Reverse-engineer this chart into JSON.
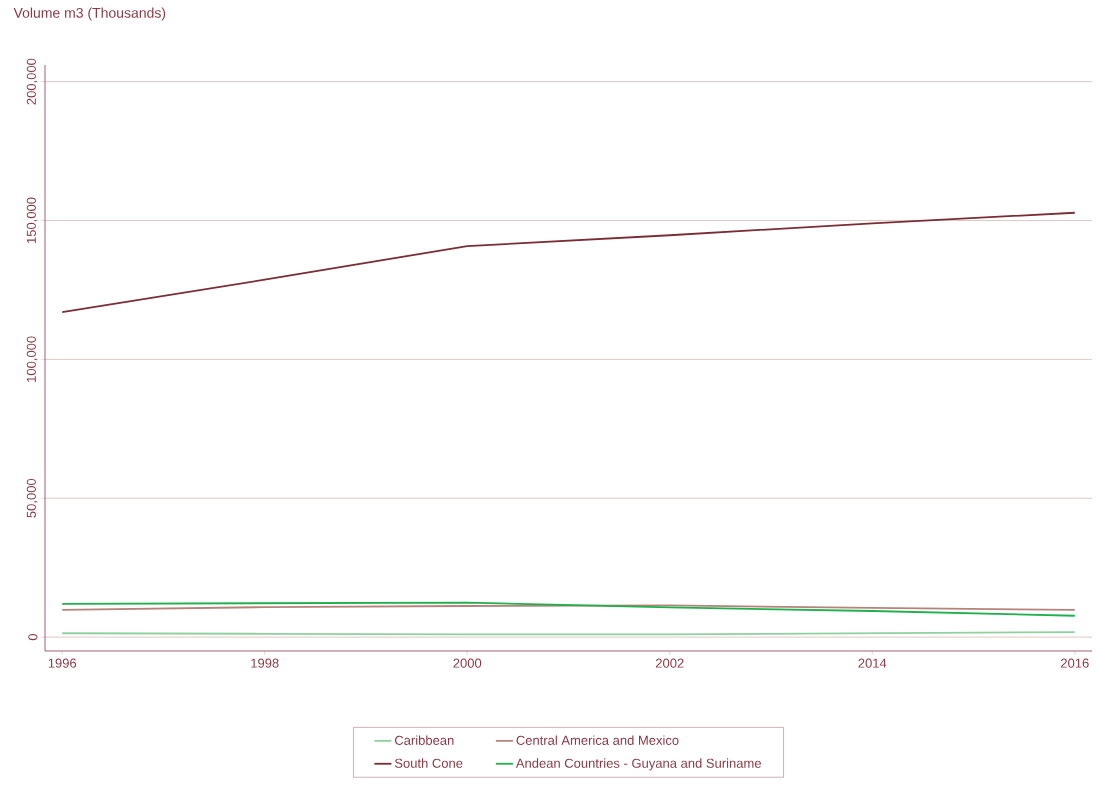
{
  "chart_data": {
    "type": "line",
    "ylabel": "Volume m3 (Thousands)",
    "categories": [
      "1996",
      "1998",
      "2000",
      "2002",
      "2014",
      "2016"
    ],
    "series": [
      {
        "name": "Caribbean",
        "color": "#8fd19e",
        "values": [
          1400,
          1200,
          1000,
          1000,
          1400,
          1800
        ]
      },
      {
        "name": "Central America and Mexico",
        "color": "#b5837a",
        "values": [
          9800,
          10800,
          11200,
          11400,
          10500,
          9800
        ]
      },
      {
        "name": "South Cone",
        "color": "#7b2d35",
        "values": [
          117000,
          128700,
          140800,
          144700,
          149000,
          152800
        ]
      },
      {
        "name": "Andean Countries - Guyana and Suriname",
        "color": "#1fb04c",
        "values": [
          12000,
          12200,
          12400,
          10700,
          9400,
          7700
        ]
      }
    ],
    "ylim": [
      -5000,
      206000
    ],
    "yticks": [
      0,
      {
        "value": 50000,
        "label": "50,000"
      },
      {
        "value": 100000,
        "label": "100,000"
      },
      {
        "value": 150000,
        "label": "150,000"
      },
      {
        "value": 200000,
        "label": "200,000"
      }
    ],
    "grid": "y",
    "legend": "bottom"
  }
}
